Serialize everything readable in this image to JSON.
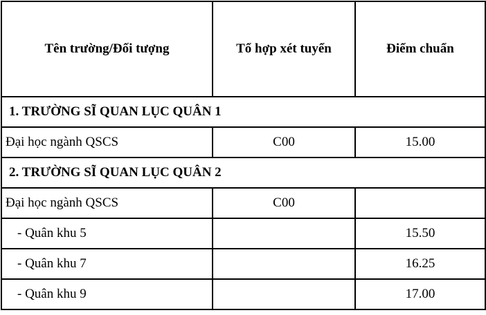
{
  "table": {
    "headers": [
      "Tên trường/Đối tượng",
      "Tổ hợp xét tuyển",
      "Điểm chuẩn"
    ],
    "sections": [
      {
        "title": "1. TRƯỜNG SĨ QUAN LỤC QUÂN 1",
        "rows": [
          {
            "name": "Đại học ngành QSCS",
            "combo": "C00",
            "score": "15.00"
          }
        ]
      },
      {
        "title": "2. TRƯỜNG SĨ QUAN LỤC QUÂN 2",
        "rows": [
          {
            "name": "Đại học ngành QSCS",
            "combo": "C00",
            "score": ""
          },
          {
            "name": "- Quân khu 5",
            "combo": "",
            "score": "15.50"
          },
          {
            "name": "- Quân khu 7",
            "combo": "",
            "score": "16.25"
          },
          {
            "name": "- Quân khu 9",
            "combo": "",
            "score": "17.00"
          }
        ]
      }
    ]
  }
}
